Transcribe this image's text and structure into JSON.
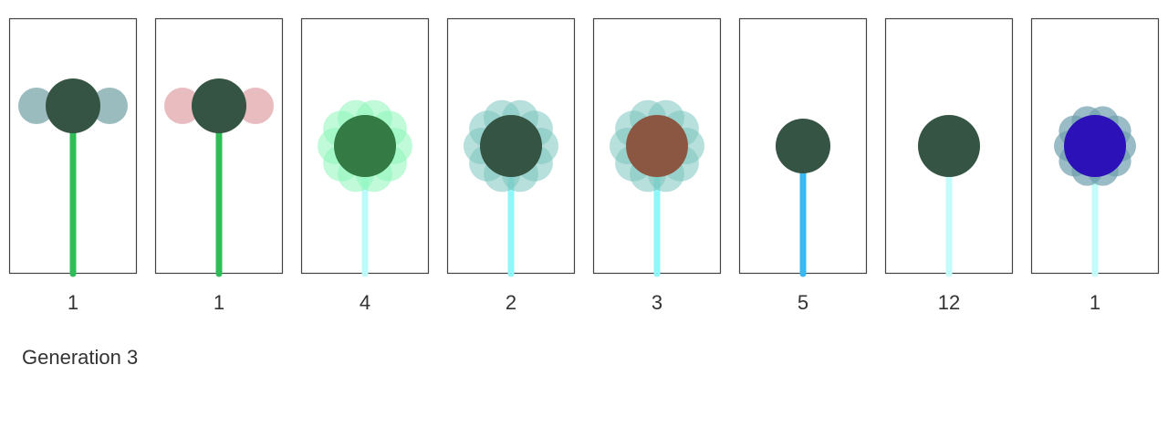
{
  "generation_label": "Generation 3",
  "frame_color": "#444444",
  "flowers": [
    {
      "count": "1",
      "petal_count": 2,
      "petal_color": "#9bbcbf",
      "petal_opacity": 1,
      "center_color": "#355443",
      "stem_color": "#2fbd57",
      "center_level": "high",
      "center_size": "large",
      "petal_size": "medium",
      "petal_spread": "wide"
    },
    {
      "count": "1",
      "petal_count": 2,
      "petal_color": "#e9bcc0",
      "petal_opacity": 1,
      "center_color": "#355443",
      "stem_color": "#2fbd57",
      "center_level": "high",
      "center_size": "large",
      "petal_size": "medium",
      "petal_spread": "wide"
    },
    {
      "count": "4",
      "petal_count": 10,
      "petal_color": "#8cf5b9",
      "petal_opacity": 0.55,
      "center_color": "#337a45",
      "stem_color": "#bdfbfb",
      "center_level": "middle",
      "center_size": "large",
      "petal_size": "medium",
      "petal_spread": "medium"
    },
    {
      "count": "2",
      "petal_count": 10,
      "petal_color": "#7cc4c0",
      "petal_opacity": 0.55,
      "center_color": "#355443",
      "stem_color": "#8ff7f7",
      "center_level": "middle",
      "center_size": "large",
      "petal_size": "medium",
      "petal_spread": "medium"
    },
    {
      "count": "3",
      "petal_count": 10,
      "petal_color": "#7cc4c0",
      "petal_opacity": 0.55,
      "center_color": "#8b5642",
      "stem_color": "#8ff7f7",
      "center_level": "middle",
      "center_size": "large",
      "petal_size": "medium",
      "petal_spread": "medium"
    },
    {
      "count": "5",
      "petal_count": 0,
      "petal_color": "#ffffff",
      "petal_opacity": 0,
      "center_color": "#355443",
      "stem_color": "#39b8f2",
      "center_level": "middle",
      "center_size": "medium",
      "petal_size": "small",
      "petal_spread": "narrow"
    },
    {
      "count": "12",
      "petal_count": 0,
      "petal_color": "#ffffff",
      "petal_opacity": 0,
      "center_color": "#355443",
      "stem_color": "#c4fbfb",
      "center_level": "middle",
      "center_size": "large",
      "petal_size": "small",
      "petal_spread": "narrow"
    },
    {
      "count": "1",
      "petal_count": 10,
      "petal_color": "#6f9fae",
      "petal_opacity": 0.7,
      "center_color": "#2c10b8",
      "stem_color": "#c4fbfb",
      "center_level": "middle",
      "center_size": "large",
      "petal_size": "small",
      "petal_spread": "narrow"
    }
  ]
}
